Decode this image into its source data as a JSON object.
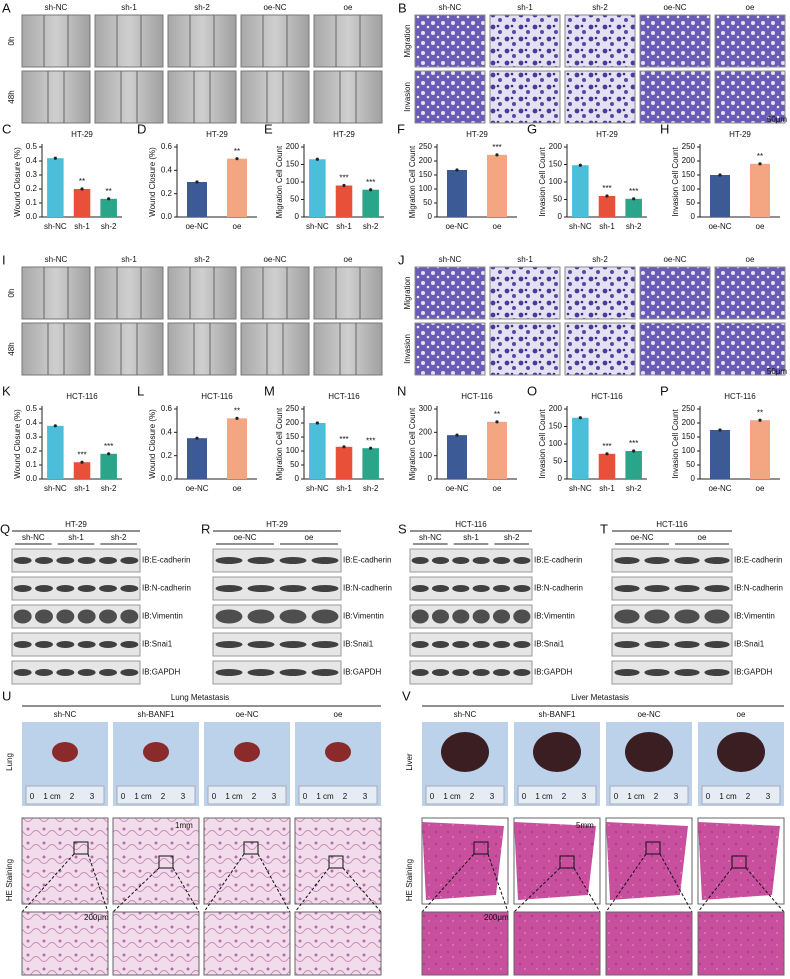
{
  "wound_ht29": {
    "letter": "A",
    "columns": [
      "sh-NC",
      "sh-1",
      "sh-2",
      "oe-NC",
      "oe"
    ],
    "rows": [
      "0h",
      "48h"
    ]
  },
  "transwell_ht29": {
    "letter": "B",
    "columns": [
      "sh-NC",
      "sh-1",
      "sh-2",
      "oe-NC",
      "oe"
    ],
    "rows": [
      "Migration",
      "Invasion"
    ],
    "scale": "50μm"
  },
  "wound_hct116": {
    "letter": "I",
    "columns": [
      "sh-NC",
      "sh-1",
      "sh-2",
      "oe-NC",
      "oe"
    ],
    "rows": [
      "0h",
      "48h"
    ]
  },
  "transwell_hct116": {
    "letter": "J",
    "columns": [
      "sh-NC",
      "sh-1",
      "sh-2",
      "oe-NC",
      "oe"
    ],
    "rows": [
      "Migration",
      "Invasion"
    ],
    "scale": "50μm"
  },
  "chart_data": [
    {
      "type": "bar",
      "letter": "C",
      "title": "HT-29",
      "ylabel": "Wound Closure (%)",
      "categories": [
        "sh-NC",
        "sh-1",
        "sh-2"
      ],
      "values": [
        0.42,
        0.2,
        0.13
      ],
      "colors": [
        "#4bbfd9",
        "#e8503a",
        "#2ba58a"
      ],
      "annotations": [
        null,
        "**",
        "**"
      ],
      "ylim": [
        0,
        0.5
      ],
      "yticks": [
        {
          "value": 0,
          "label": "0.0"
        },
        0.1,
        0.2,
        0.3,
        0.4,
        0.5
      ]
    },
    {
      "type": "bar",
      "letter": "D",
      "title": "HT-29",
      "ylabel": "Wound Closure (%)",
      "categories": [
        "oe-NC",
        "oe"
      ],
      "values": [
        0.3,
        0.5
      ],
      "colors": [
        "#3b5a96",
        "#f4a582"
      ],
      "annotations": [
        null,
        "**"
      ],
      "ylim": [
        0,
        0.6
      ],
      "yticks": [
        {
          "value": 0,
          "label": "0.0"
        },
        0.2,
        0.4,
        0.6
      ]
    },
    {
      "type": "bar",
      "letter": "E",
      "title": "HT-29",
      "ylabel": "Migration Cell Count",
      "categories": [
        "sh-NC",
        "sh-1",
        "sh-2"
      ],
      "values": [
        165,
        90,
        78
      ],
      "colors": [
        "#4bbfd9",
        "#e8503a",
        "#2ba58a"
      ],
      "annotations": [
        null,
        "***",
        "***"
      ],
      "ylim": [
        0,
        200
      ],
      "yticks": [
        0,
        50,
        100,
        150,
        200
      ]
    },
    {
      "type": "bar",
      "letter": "F",
      "title": "HT-29",
      "ylabel": "Migration Cell Count",
      "categories": [
        "oe-NC",
        "oe"
      ],
      "values": [
        168,
        222
      ],
      "colors": [
        "#3b5a96",
        "#f4a582"
      ],
      "annotations": [
        null,
        "***"
      ],
      "ylim": [
        0,
        250
      ],
      "yticks": [
        0,
        50,
        100,
        150,
        200,
        250
      ]
    },
    {
      "type": "bar",
      "letter": "G",
      "title": "HT-29",
      "ylabel": "Invasion Cell Count",
      "categories": [
        "sh-NC",
        "sh-1",
        "sh-2"
      ],
      "values": [
        148,
        60,
        52
      ],
      "colors": [
        "#4bbfd9",
        "#e8503a",
        "#2ba58a"
      ],
      "annotations": [
        null,
        "***",
        "***"
      ],
      "ylim": [
        0,
        200
      ],
      "yticks": [
        0,
        50,
        100,
        150,
        200
      ]
    },
    {
      "type": "bar",
      "letter": "H",
      "title": "HT-29",
      "ylabel": "Invasion Cell Count",
      "categories": [
        "oe-NC",
        "oe"
      ],
      "values": [
        150,
        190
      ],
      "colors": [
        "#3b5a96",
        "#f4a582"
      ],
      "annotations": [
        null,
        "**"
      ],
      "ylim": [
        0,
        250
      ],
      "yticks": [
        0,
        50,
        100,
        150,
        200,
        250
      ]
    },
    {
      "type": "bar",
      "letter": "K",
      "title": "HCT-116",
      "ylabel": "Wound Closure (%)",
      "categories": [
        "sh-NC",
        "sh-1",
        "sh-2"
      ],
      "values": [
        0.38,
        0.12,
        0.18
      ],
      "colors": [
        "#4bbfd9",
        "#e8503a",
        "#2ba58a"
      ],
      "annotations": [
        null,
        "***",
        "***"
      ],
      "ylim": [
        0,
        0.5
      ],
      "yticks": [
        {
          "value": 0,
          "label": "0.0"
        },
        0.1,
        0.2,
        0.3,
        0.4,
        0.5
      ]
    },
    {
      "type": "bar",
      "letter": "L",
      "title": "HCT-116",
      "ylabel": "Wound Closure (%)",
      "categories": [
        "oe-NC",
        "oe"
      ],
      "values": [
        0.35,
        0.52
      ],
      "colors": [
        "#3b5a96",
        "#f4a582"
      ],
      "annotations": [
        null,
        "**"
      ],
      "ylim": [
        0,
        0.6
      ],
      "yticks": [
        {
          "value": 0,
          "label": "0.0"
        },
        0.2,
        0.4,
        0.6
      ]
    },
    {
      "type": "bar",
      "letter": "M",
      "title": "HCT-116",
      "ylabel": "Migration Cell Count",
      "categories": [
        "sh-NC",
        "sh-1",
        "sh-2"
      ],
      "values": [
        200,
        115,
        110
      ],
      "colors": [
        "#4bbfd9",
        "#e8503a",
        "#2ba58a"
      ],
      "annotations": [
        null,
        "***",
        "***"
      ],
      "ylim": [
        0,
        250
      ],
      "yticks": [
        0,
        50,
        100,
        150,
        200,
        250
      ]
    },
    {
      "type": "bar",
      "letter": "N",
      "title": "HCT-116",
      "ylabel": "Migration Cell Count",
      "categories": [
        "oe-NC",
        "oe"
      ],
      "values": [
        188,
        245
      ],
      "colors": [
        "#3b5a96",
        "#f4a582"
      ],
      "annotations": [
        null,
        "**"
      ],
      "ylim": [
        0,
        300
      ],
      "yticks": [
        0,
        100,
        200,
        300
      ]
    },
    {
      "type": "bar",
      "letter": "O",
      "title": "HCT-116",
      "ylabel": "Invasion Cell Count",
      "categories": [
        "sh-NC",
        "sh-1",
        "sh-2"
      ],
      "values": [
        175,
        72,
        80
      ],
      "colors": [
        "#4bbfd9",
        "#e8503a",
        "#2ba58a"
      ],
      "annotations": [
        null,
        "***",
        "***"
      ],
      "ylim": [
        0,
        200
      ],
      "yticks": [
        0,
        50,
        100,
        150,
        200
      ]
    },
    {
      "type": "bar",
      "letter": "P",
      "title": "HCT-116",
      "ylabel": "Invasion Cell Count",
      "categories": [
        "oe-NC",
        "oe"
      ],
      "values": [
        175,
        210
      ],
      "colors": [
        "#3b5a96",
        "#f4a582"
      ],
      "annotations": [
        null,
        "**"
      ],
      "ylim": [
        0,
        250
      ],
      "yticks": [
        0,
        50,
        100,
        150,
        200,
        250
      ]
    }
  ],
  "blots": [
    {
      "letter": "Q",
      "title": "HT-29",
      "groups": [
        "sh-NC",
        "sh-1",
        "sh-2"
      ],
      "rows": [
        "IB:E-cadherin",
        "IB:N-cadherin",
        "IB:Vimentin",
        "IB:Snai1",
        "IB:GAPDH"
      ]
    },
    {
      "letter": "R",
      "title": "HT-29",
      "groups": [
        "oe-NC",
        "oe"
      ],
      "rows": [
        "IB:E-cadherin",
        "IB:N-cadherin",
        "IB:Vimentin",
        "IB:Snai1",
        "IB:GAPDH"
      ]
    },
    {
      "letter": "S",
      "title": "HCT-116",
      "groups": [
        "sh-NC",
        "sh-1",
        "sh-2"
      ],
      "rows": [
        "IB:E-cadherin",
        "IB:N-cadherin",
        "IB:Vimentin",
        "IB:Snai1",
        "IB:GAPDH"
      ]
    },
    {
      "letter": "T",
      "title": "HCT-116",
      "groups": [
        "oe-NC",
        "oe"
      ],
      "rows": [
        "IB:E-cadherin",
        "IB:N-cadherin",
        "IB:Vimentin",
        "IB:Snai1",
        "IB:GAPDH"
      ]
    }
  ],
  "metastasis": [
    {
      "letter": "U",
      "title": "Lung Metastasis",
      "columns": [
        "sh-NC",
        "sh-BANF1",
        "oe-NC",
        "oe"
      ],
      "organ": "Lung",
      "staining": "HE Staining",
      "ruler": [
        "0",
        "1 cm",
        "2",
        "3"
      ],
      "scale_low": "1mm",
      "scale_high": "200μm"
    },
    {
      "letter": "V",
      "title": "Liver Metastasis",
      "columns": [
        "sh-NC",
        "sh-BANF1",
        "oe-NC",
        "oe"
      ],
      "organ": "Liver",
      "staining": "HE Staining",
      "ruler": [
        "0",
        "1 cm",
        "2",
        "3"
      ],
      "scale_low": "5mm",
      "scale_high": "200μm"
    }
  ]
}
